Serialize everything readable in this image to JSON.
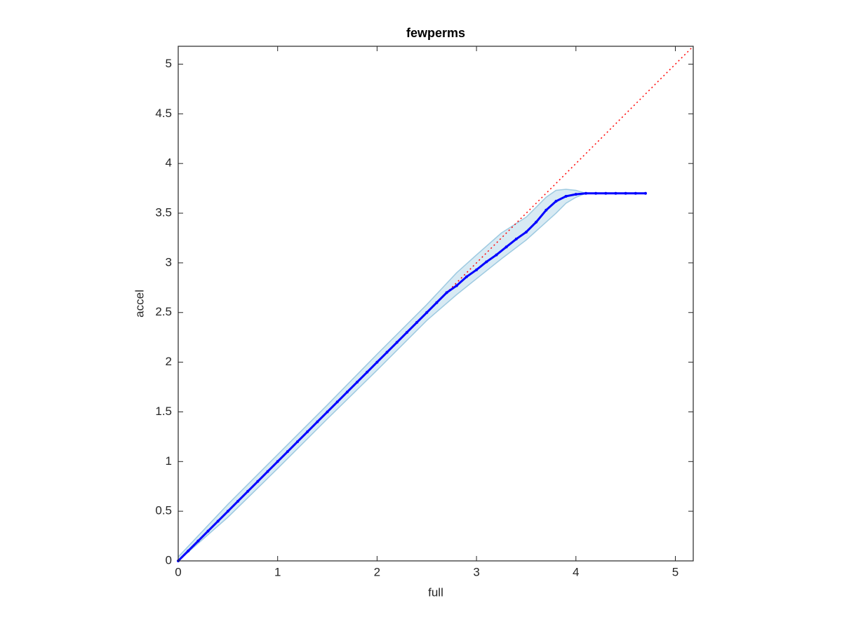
{
  "chart_data": {
    "type": "line",
    "title": "fewperms",
    "x_label": "full",
    "y_label": "accel",
    "xlim": [
      0,
      5.18
    ],
    "ylim": [
      0,
      5.18
    ],
    "xticks": [
      0,
      1,
      2,
      3,
      4,
      5
    ],
    "yticks": [
      0,
      0.5,
      1,
      1.5,
      2,
      2.5,
      3,
      3.5,
      4,
      4.5,
      5
    ],
    "grid": false,
    "band": {
      "color": "#9ecae1",
      "x": [
        0,
        0.5,
        1,
        1.5,
        2,
        2.5,
        2.8,
        3,
        3.25,
        3.5,
        3.7,
        3.8,
        3.9,
        4.0,
        4.1
      ],
      "upper": [
        0.04,
        0.57,
        1.07,
        1.57,
        2.08,
        2.58,
        2.9,
        3.08,
        3.3,
        3.46,
        3.66,
        3.73,
        3.74,
        3.73,
        3.7
      ],
      "lower": [
        0,
        0.44,
        0.93,
        1.43,
        1.92,
        2.42,
        2.68,
        2.84,
        3.04,
        3.23,
        3.41,
        3.5,
        3.6,
        3.66,
        3.7
      ]
    },
    "mean": {
      "color": "#0000ff",
      "x": [
        0,
        0.1,
        0.2,
        0.3,
        0.4,
        0.5,
        0.6,
        0.7,
        0.8,
        0.9,
        1.0,
        1.1,
        1.2,
        1.3,
        1.4,
        1.5,
        1.6,
        1.7,
        1.8,
        1.9,
        2.0,
        2.1,
        2.2,
        2.3,
        2.4,
        2.5,
        2.6,
        2.7,
        2.8,
        2.9,
        3.0,
        3.1,
        3.2,
        3.3,
        3.4,
        3.5,
        3.6,
        3.7,
        3.8,
        3.9,
        4.0,
        4.1,
        4.2,
        4.3,
        4.4,
        4.5,
        4.6,
        4.7
      ],
      "values": [
        0,
        0.1,
        0.2,
        0.3,
        0.4,
        0.5,
        0.6,
        0.7,
        0.8,
        0.9,
        1.0,
        1.1,
        1.2,
        1.3,
        1.4,
        1.5,
        1.6,
        1.7,
        1.8,
        1.9,
        2.0,
        2.1,
        2.2,
        2.3,
        2.4,
        2.5,
        2.6,
        2.7,
        2.77,
        2.86,
        2.93,
        3.01,
        3.08,
        3.16,
        3.24,
        3.31,
        3.41,
        3.53,
        3.62,
        3.67,
        3.69,
        3.7,
        3.7,
        3.7,
        3.7,
        3.7,
        3.7,
        3.7
      ]
    },
    "reference": {
      "color": "#ff0000",
      "x": [
        0,
        5.18
      ],
      "values": [
        0,
        5.18
      ]
    }
  }
}
